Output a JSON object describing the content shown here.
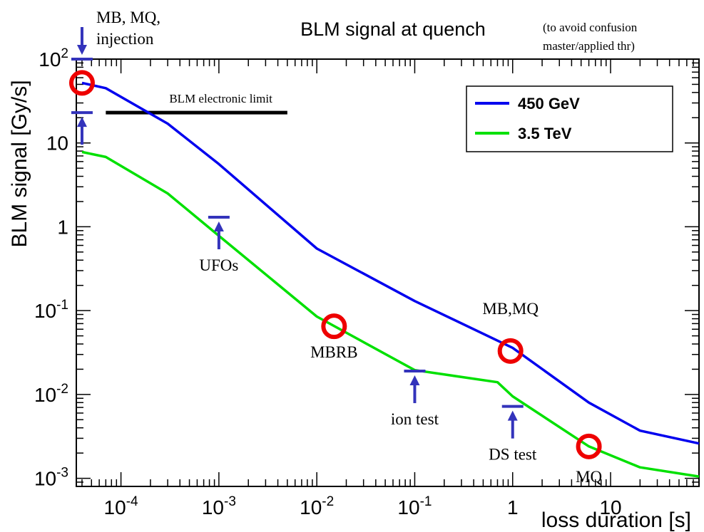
{
  "chart_data": {
    "type": "line",
    "title": "BLM signal at quench",
    "subtitle": [
      "(to avoid confusion",
      "master/applied thr)"
    ],
    "xlabel": "loss duration [s]",
    "ylabel": "BLM signal [Gy/s]",
    "x_scale": "log",
    "y_scale": "log",
    "xlim": [
      3.5e-05,
      80
    ],
    "ylim": [
      0.0008,
      100
    ],
    "x_ticks": [
      {
        "value": 0.0001,
        "base": "10",
        "exp": "-4"
      },
      {
        "value": 0.001,
        "base": "10",
        "exp": "-3"
      },
      {
        "value": 0.01,
        "base": "10",
        "exp": "-2"
      },
      {
        "value": 0.1,
        "base": "10",
        "exp": "-1"
      },
      {
        "value": 1,
        "base": "1",
        "exp": ""
      },
      {
        "value": 10,
        "base": "10",
        "exp": ""
      }
    ],
    "y_ticks": [
      {
        "value": 0.001,
        "base": "10",
        "exp": "-3"
      },
      {
        "value": 0.01,
        "base": "10",
        "exp": "-2"
      },
      {
        "value": 0.1,
        "base": "10",
        "exp": "-1"
      },
      {
        "value": 1,
        "base": "1",
        "exp": ""
      },
      {
        "value": 10,
        "base": "10",
        "exp": ""
      },
      {
        "value": 100,
        "base": "10",
        "exp": "2"
      }
    ],
    "legend_position": "top-right",
    "series": [
      {
        "name": "450 GeV",
        "color": "#0000ee",
        "points": [
          [
            4e-05,
            52
          ],
          [
            7e-05,
            45
          ],
          [
            0.0003,
            17
          ],
          [
            0.001,
            5.6
          ],
          [
            0.01,
            0.55
          ],
          [
            0.1,
            0.13
          ],
          [
            1,
            0.036
          ],
          [
            6,
            0.008
          ],
          [
            20,
            0.0037
          ],
          [
            80,
            0.0026
          ]
        ]
      },
      {
        "name": "3.5 TeV",
        "color": "#00e000",
        "points": [
          [
            4e-05,
            7.8
          ],
          [
            7e-05,
            6.8
          ],
          [
            0.0003,
            2.5
          ],
          [
            0.001,
            0.78
          ],
          [
            0.01,
            0.085
          ],
          [
            0.1,
            0.0195
          ],
          [
            0.7,
            0.014
          ],
          [
            1,
            0.0095
          ],
          [
            6,
            0.0024
          ],
          [
            20,
            0.00135
          ],
          [
            80,
            0.00105
          ]
        ]
      }
    ],
    "limit_line": {
      "label": "BLM electronic limit",
      "x_range": [
        7e-05,
        0.005
      ],
      "y": 23,
      "color": "#000000"
    },
    "markers": [
      {
        "type": "circle",
        "x": 4e-05,
        "y": 52,
        "color": "#ee0000"
      },
      {
        "type": "circle",
        "x": 0.015,
        "y": 0.065,
        "color": "#ee0000"
      },
      {
        "type": "circle",
        "x": 0.95,
        "y": 0.033,
        "color": "#ee0000"
      },
      {
        "type": "circle",
        "x": 6,
        "y": 0.0024,
        "color": "#ee0000"
      }
    ],
    "arrows": [
      {
        "label": [
          "MB, MQ,",
          "injection"
        ],
        "x": 4e-05,
        "y": 100,
        "direction": "down",
        "color": "#3333bb"
      },
      {
        "label": [],
        "x": 4e-05,
        "y": 23,
        "direction": "up",
        "color": "#3333bb"
      },
      {
        "label": [
          "UFOs"
        ],
        "x": 0.001,
        "y": 1.3,
        "direction": "up",
        "color": "#3333bb"
      },
      {
        "label": [
          "ion test"
        ],
        "x": 0.1,
        "y": 0.019,
        "direction": "up",
        "color": "#3333bb"
      },
      {
        "label": [
          "DS test"
        ],
        "x": 1,
        "y": 0.0072,
        "direction": "up",
        "color": "#3333bb"
      }
    ],
    "annotations": [
      {
        "text": "MBRB",
        "x": 0.015,
        "y": 0.065
      },
      {
        "text": "MB,MQ",
        "x": 0.95,
        "y": 0.033
      },
      {
        "text": "MQ",
        "x": 6,
        "y": 0.0024
      }
    ]
  }
}
